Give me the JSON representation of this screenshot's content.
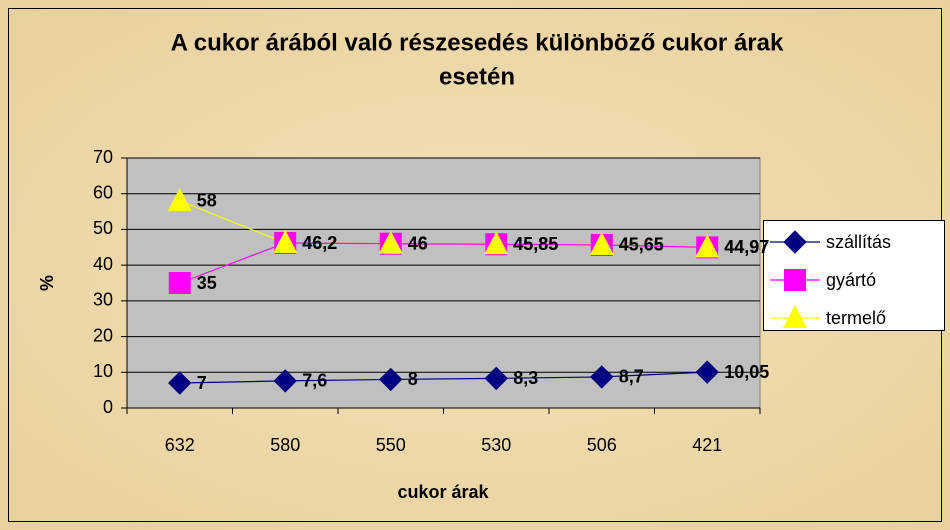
{
  "chart_data": {
    "type": "line",
    "title": [
      "A cukor árából való részesedés különböző cukor árak",
      "esetén"
    ],
    "xlabel": "cukor árak",
    "ylabel": "%",
    "categories": [
      "632",
      "580",
      "550",
      "530",
      "506",
      "421"
    ],
    "series": [
      {
        "name": "szállítás",
        "color": "#000080",
        "marker": "diamond",
        "values": [
          7,
          7.6,
          8,
          8.3,
          8.7,
          10.05
        ],
        "value_labels": [
          "7",
          "7,6",
          "8",
          "8,3",
          "8,7",
          "10,05"
        ]
      },
      {
        "name": "gyártó",
        "color": "#ff00ff",
        "marker": "square",
        "values": [
          35,
          46.2,
          46,
          45.85,
          45.65,
          44.97
        ],
        "value_labels": [
          "35",
          "46,2",
          "46",
          "45,85",
          "45,65",
          "44,97"
        ]
      },
      {
        "name": "termelő",
        "color": "#ffff00",
        "marker": "triangle",
        "values": [
          58,
          46.2,
          46,
          45.85,
          45.65,
          44.97
        ],
        "value_labels": [
          "58",
          "46,2",
          "46",
          "45,85",
          "45,65",
          "44,97"
        ]
      }
    ],
    "ylim": [
      0,
      70
    ],
    "yticks": [
      0,
      10,
      20,
      30,
      40,
      50,
      60,
      70
    ],
    "grid": true,
    "legend": "right"
  }
}
